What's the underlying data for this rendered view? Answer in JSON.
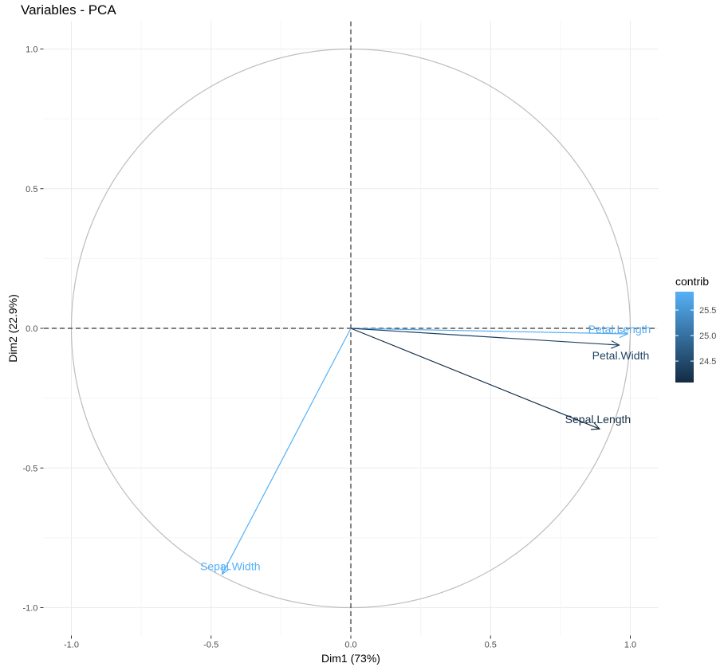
{
  "chart_data": {
    "type": "scatter",
    "title": "Variables - PCA",
    "xlabel": "Dim1 (73%)",
    "ylabel": "Dim2 (22.9%)",
    "xlim": [
      -1.1,
      1.1
    ],
    "ylim": [
      -1.1,
      1.1
    ],
    "x_ticks": [
      -1.0,
      -0.5,
      0.0,
      0.5,
      1.0
    ],
    "x_tick_labels": [
      "-1.0",
      "-0.5",
      "0.0",
      "0.5",
      "1.0"
    ],
    "y_ticks": [
      -1.0,
      -0.5,
      0.0,
      0.5,
      1.0
    ],
    "y_tick_labels": [
      "-1.0",
      "-0.5",
      "0.0",
      "0.5",
      "1.0"
    ],
    "grid": true,
    "variables": [
      {
        "name": "Sepal.Length",
        "x": 0.89,
        "y": -0.36,
        "contrib": 24.1
      },
      {
        "name": "Sepal.Width",
        "x": -0.46,
        "y": -0.88,
        "contrib": 25.85
      },
      {
        "name": "Petal.Length",
        "x": 0.99,
        "y": -0.02,
        "contrib": 25.8
      },
      {
        "name": "Petal.Width",
        "x": 0.96,
        "y": -0.06,
        "contrib": 24.4
      }
    ],
    "legend": {
      "title": "contrib",
      "placement": "right",
      "range": [
        24.08,
        25.86
      ],
      "ticks": [
        24.5,
        25.0,
        25.5
      ],
      "tick_labels": [
        "24.5",
        "25.0",
        "25.5"
      ],
      "low_color": "#132B43",
      "high_color": "#56B1F7"
    }
  }
}
